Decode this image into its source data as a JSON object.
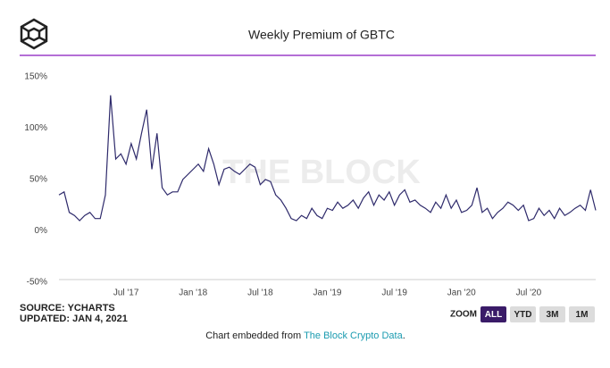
{
  "chart_data": {
    "type": "line",
    "title": "Weekly Premium of GBTC",
    "watermark": "THE BLOCK",
    "categories": [
      null,
      null,
      null,
      null,
      null,
      null,
      null,
      null,
      null,
      null,
      null,
      null,
      null,
      "Jul '17",
      null,
      null,
      null,
      null,
      null,
      null,
      null,
      null,
      null,
      null,
      null,
      null,
      "Jan '18",
      null,
      null,
      null,
      null,
      null,
      null,
      null,
      null,
      null,
      null,
      null,
      null,
      "Jul '18",
      null,
      null,
      null,
      null,
      null,
      null,
      null,
      null,
      null,
      null,
      null,
      null,
      "Jan '19",
      null,
      null,
      null,
      null,
      null,
      null,
      null,
      null,
      null,
      null,
      null,
      null,
      "Jul '19",
      null,
      null,
      null,
      null,
      null,
      null,
      null,
      null,
      null,
      null,
      null,
      null,
      "Jan '20",
      null,
      null,
      null,
      null,
      null,
      null,
      null,
      null,
      null,
      null,
      null,
      null,
      "Jul '20",
      null,
      null,
      null,
      null,
      null,
      null,
      null,
      null,
      null,
      null,
      null,
      null,
      null
    ],
    "values": [
      35,
      38,
      18,
      15,
      10,
      15,
      18,
      12,
      12,
      35,
      132,
      70,
      75,
      65,
      85,
      70,
      95,
      118,
      60,
      95,
      42,
      35,
      38,
      38,
      50,
      55,
      60,
      65,
      58,
      80,
      65,
      45,
      60,
      62,
      58,
      55,
      60,
      65,
      62,
      45,
      50,
      48,
      35,
      30,
      22,
      12,
      10,
      15,
      12,
      22,
      15,
      12,
      22,
      20,
      28,
      22,
      25,
      30,
      22,
      32,
      38,
      25,
      35,
      30,
      38,
      25,
      35,
      40,
      28,
      30,
      25,
      22,
      18,
      28,
      22,
      35,
      22,
      30,
      18,
      20,
      25,
      42,
      18,
      22,
      12,
      18,
      22,
      28,
      25,
      20,
      25,
      10,
      12,
      22,
      15,
      20,
      12,
      22,
      15,
      18,
      22,
      25,
      20,
      40,
      20
    ],
    "color": "#2e2a6b",
    "ylim": [
      -50,
      150
    ],
    "yticks": [
      {
        "value": -50,
        "label": "-50%"
      },
      {
        "value": 0,
        "label": "0%"
      },
      {
        "value": 50,
        "label": "50%"
      },
      {
        "value": 100,
        "label": "100%"
      },
      {
        "value": 150,
        "label": "150%"
      }
    ],
    "grid": false
  },
  "source": "SOURCE: YCHARTS",
  "updated": "UPDATED: JAN 4, 2021",
  "zoom": {
    "label": "ZOOM",
    "buttons": [
      "ALL",
      "YTD",
      "3M",
      "1M"
    ],
    "active": 0
  },
  "footer": {
    "text": "Chart embedded from ",
    "link": "The Block Crypto Data",
    "end": "."
  }
}
